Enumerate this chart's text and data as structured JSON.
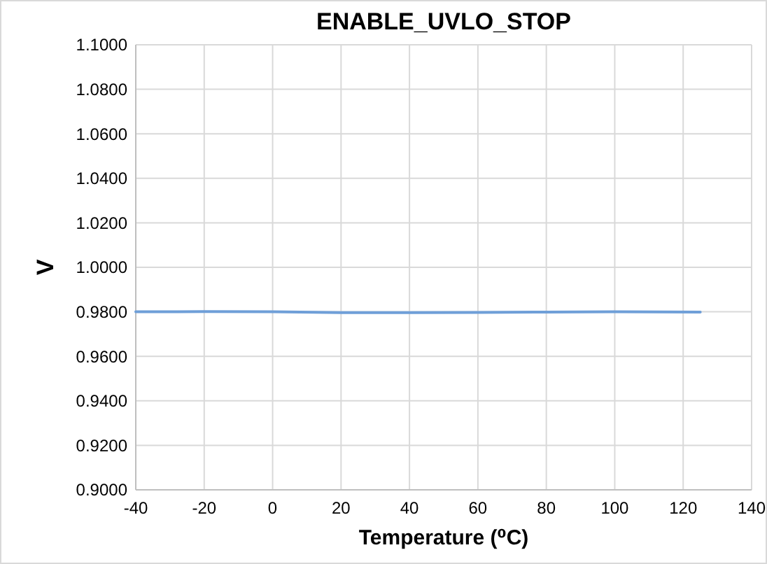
{
  "chart_data": {
    "type": "line",
    "title": "ENABLE_UVLO_STOP",
    "xlabel": "Temperature (⁰C)",
    "ylabel": "V",
    "x": [
      -40,
      -20,
      0,
      20,
      40,
      60,
      80,
      100,
      125
    ],
    "series": [
      {
        "color": "#6f9fd8",
        "values": [
          0.98,
          0.9801,
          0.98,
          0.9796,
          0.9796,
          0.9797,
          0.9799,
          0.98,
          0.9799
        ]
      }
    ],
    "xlim": [
      -40,
      140
    ],
    "xticks": [
      -40,
      -20,
      0,
      20,
      40,
      60,
      80,
      100,
      120,
      140
    ],
    "ylim": [
      0.9,
      1.1
    ],
    "yticks": [
      {
        "value": 0.9,
        "label": "0.9000"
      },
      {
        "value": 0.92,
        "label": "0.9200"
      },
      {
        "value": 0.94,
        "label": "0.9400"
      },
      {
        "value": 0.96,
        "label": "0.9600"
      },
      {
        "value": 0.98,
        "label": "0.9800"
      },
      {
        "value": 1.0,
        "label": "1.0000"
      },
      {
        "value": 1.02,
        "label": "1.0200"
      },
      {
        "value": 1.04,
        "label": "1.0400"
      },
      {
        "value": 1.06,
        "label": "1.0600"
      },
      {
        "value": 1.08,
        "label": "1.0800"
      },
      {
        "value": 1.1,
        "label": "1.1000"
      }
    ],
    "grid": true,
    "marker": "none",
    "line_style": "solid"
  }
}
